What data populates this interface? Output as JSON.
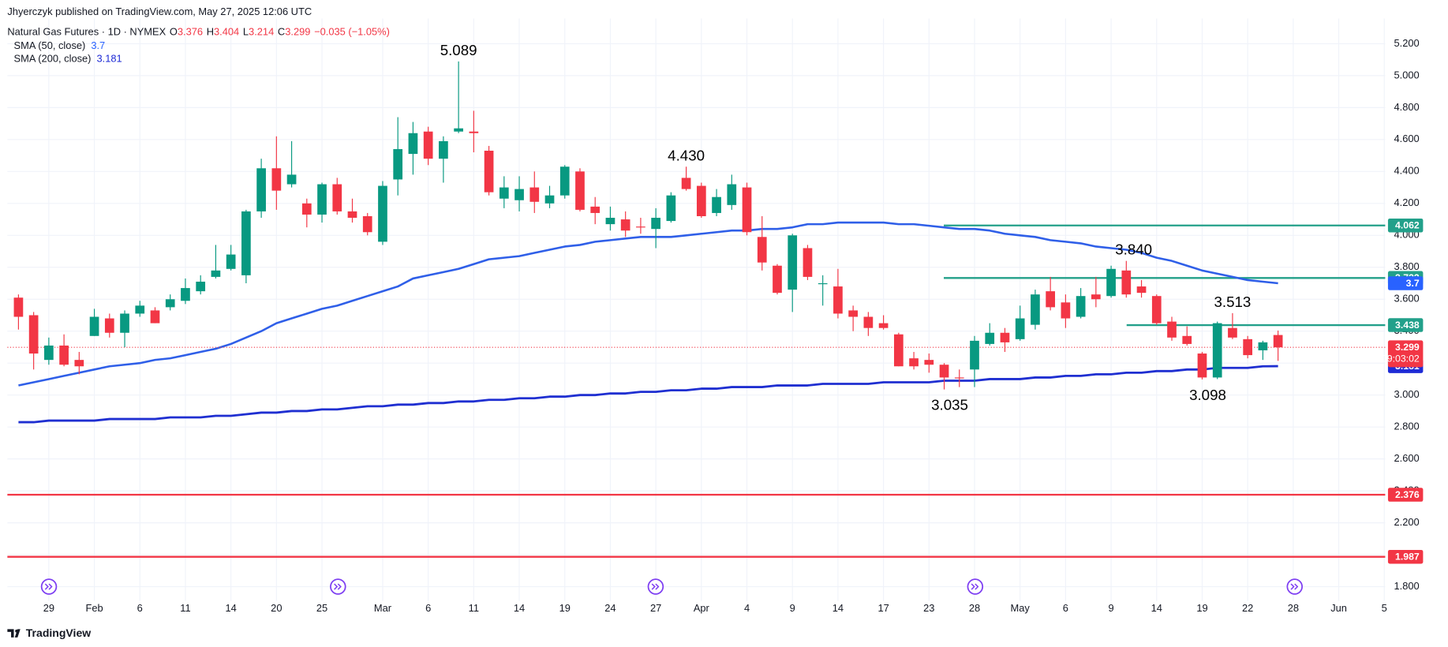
{
  "header": {
    "published": "Jhyerczyk published on TradingView.com, May 27, 2025 12:06 UTC",
    "symbol": "Natural Gas Futures · 1D · NYMEX",
    "ohlc_keys": [
      "O",
      "H",
      "L",
      "C"
    ],
    "change": "−0.035 (−1.05%)"
  },
  "footer": {
    "brand": "TradingView"
  },
  "chart_data": {
    "type": "candlestick",
    "categories": [
      null,
      null,
      "29",
      null,
      null,
      "Feb",
      null,
      null,
      "6",
      null,
      null,
      "11",
      null,
      null,
      "14",
      null,
      null,
      "20",
      null,
      null,
      "25",
      null,
      null,
      null,
      "Mar",
      null,
      null,
      "6",
      null,
      null,
      "11",
      null,
      null,
      "14",
      null,
      null,
      "19",
      null,
      null,
      "24",
      null,
      null,
      "27",
      null,
      null,
      "Apr",
      null,
      null,
      "4",
      null,
      null,
      "9",
      null,
      null,
      "14",
      null,
      null,
      "17",
      null,
      null,
      "23",
      null,
      null,
      "28",
      null,
      null,
      "May",
      null,
      null,
      "6",
      null,
      null,
      "9",
      null,
      null,
      "14",
      null,
      null,
      "19",
      null,
      null,
      "22",
      null,
      null,
      "28",
      null,
      null,
      "Jun",
      null,
      null,
      "5"
    ],
    "open": [
      3.61,
      3.5,
      3.22,
      3.31,
      3.22,
      3.37,
      3.48,
      3.39,
      3.51,
      3.53,
      3.55,
      3.59,
      3.65,
      3.74,
      3.79,
      3.75,
      4.15,
      4.42,
      4.32,
      4.2,
      4.13,
      4.32,
      4.15,
      4.12,
      3.96,
      4.35,
      4.51,
      4.65,
      4.48,
      4.65,
      4.65,
      4.53,
      4.23,
      4.22,
      4.3,
      4.2,
      4.25,
      4.4,
      4.18,
      4.07,
      4.1,
      4.055,
      4.04,
      4.09,
      4.36,
      4.31,
      4.14,
      4.19,
      4.3,
      3.99,
      3.81,
      3.66,
      3.92,
      3.7,
      3.68,
      3.53,
      3.49,
      3.45,
      3.38,
      3.23,
      3.22,
      3.19,
      3.11,
      3.16,
      3.32,
      3.39,
      3.35,
      3.44,
      3.65,
      3.58,
      3.49,
      3.63,
      3.62,
      3.78,
      3.68,
      3.62,
      3.46,
      3.37,
      3.26,
      3.11,
      3.42,
      3.35,
      3.28,
      3.376,
      null,
      null,
      null,
      null,
      null,
      null,
      null
    ],
    "high": [
      3.63,
      3.52,
      3.36,
      3.38,
      3.27,
      3.54,
      3.51,
      3.53,
      3.59,
      3.55,
      3.63,
      3.73,
      3.75,
      3.94,
      3.94,
      4.16,
      4.48,
      4.62,
      4.59,
      4.23,
      4.33,
      4.36,
      4.23,
      4.14,
      4.34,
      4.74,
      4.71,
      4.68,
      4.62,
      5.089,
      4.78,
      4.56,
      4.37,
      4.37,
      4.4,
      4.31,
      4.44,
      4.42,
      4.24,
      4.18,
      4.15,
      4.11,
      4.17,
      4.27,
      4.43,
      4.33,
      4.29,
      4.38,
      4.33,
      4.12,
      3.82,
      4.01,
      3.94,
      3.75,
      3.79,
      3.56,
      3.52,
      3.5,
      3.39,
      3.27,
      3.26,
      3.2,
      3.16,
      3.37,
      3.45,
      3.42,
      3.56,
      3.66,
      3.74,
      3.63,
      3.67,
      3.74,
      3.81,
      3.84,
      3.72,
      3.63,
      3.49,
      3.43,
      3.27,
      3.46,
      3.513,
      3.37,
      3.34,
      3.404,
      null,
      null,
      null,
      null,
      null,
      null,
      null
    ],
    "low": [
      3.41,
      3.16,
      3.19,
      3.18,
      3.13,
      3.37,
      3.36,
      3.3,
      3.49,
      3.45,
      3.53,
      3.57,
      3.63,
      3.73,
      3.78,
      3.7,
      4.11,
      4.16,
      4.3,
      4.05,
      4.08,
      4.13,
      4.08,
      4.0,
      3.94,
      4.25,
      4.38,
      4.44,
      4.33,
      4.64,
      4.52,
      4.25,
      4.17,
      4.15,
      4.14,
      4.17,
      4.23,
      4.15,
      4.07,
      4.03,
      3.99,
      4.01,
      3.92,
      4.08,
      4.28,
      4.11,
      4.12,
      4.16,
      4.0,
      3.78,
      3.63,
      3.52,
      3.72,
      3.56,
      3.48,
      3.4,
      3.37,
      3.41,
      3.18,
      3.16,
      3.14,
      3.035,
      3.05,
      3.05,
      3.31,
      3.27,
      3.34,
      3.41,
      3.53,
      3.42,
      3.48,
      3.55,
      3.61,
      3.61,
      3.61,
      3.44,
      3.34,
      3.31,
      3.098,
      3.1,
      3.35,
      3.23,
      3.22,
      3.214,
      null,
      null,
      null,
      null,
      null,
      null,
      null
    ],
    "close": [
      3.49,
      3.26,
      3.31,
      3.19,
      3.18,
      3.49,
      3.39,
      3.51,
      3.56,
      3.45,
      3.6,
      3.67,
      3.71,
      3.78,
      3.88,
      4.15,
      4.42,
      4.28,
      4.38,
      4.13,
      4.32,
      4.15,
      4.11,
      4.02,
      4.31,
      4.54,
      4.64,
      4.48,
      4.59,
      4.67,
      4.64,
      4.27,
      4.3,
      4.29,
      4.21,
      4.25,
      4.43,
      4.16,
      4.14,
      4.11,
      4.03,
      4.05,
      4.11,
      4.25,
      4.29,
      4.12,
      4.24,
      4.32,
      4.02,
      3.83,
      3.64,
      4.0,
      3.74,
      3.7,
      3.51,
      3.49,
      3.42,
      3.42,
      3.18,
      3.18,
      3.19,
      3.11,
      3.105,
      3.34,
      3.39,
      3.33,
      3.48,
      3.63,
      3.55,
      3.48,
      3.62,
      3.6,
      3.79,
      3.63,
      3.64,
      3.45,
      3.36,
      3.32,
      3.11,
      3.45,
      3.36,
      3.25,
      3.33,
      3.299,
      null,
      null,
      null,
      null,
      null,
      null,
      null
    ],
    "high_labels": [
      null,
      null,
      null,
      null,
      null,
      null,
      null,
      null,
      null,
      null,
      null,
      null,
      null,
      null,
      null,
      null,
      null,
      null,
      null,
      null,
      null,
      null,
      null,
      null,
      null,
      null,
      null,
      null,
      null,
      "5.089",
      null,
      null,
      null,
      null,
      null,
      null,
      null,
      null,
      null,
      null,
      null,
      null,
      null,
      null,
      "4.430",
      null,
      null,
      null,
      null,
      null,
      null,
      null,
      null,
      null,
      null,
      null,
      null,
      null,
      null,
      null,
      null,
      null,
      null,
      null,
      null,
      null,
      null,
      null,
      null,
      null,
      null,
      null,
      null,
      "3.840",
      null,
      null,
      null,
      null,
      null,
      null,
      "3.513",
      null,
      null,
      null,
      null,
      null,
      null,
      null,
      null,
      null,
      null
    ],
    "low_labels": [
      null,
      null,
      null,
      null,
      null,
      null,
      null,
      null,
      null,
      null,
      null,
      null,
      null,
      null,
      null,
      null,
      null,
      null,
      null,
      null,
      null,
      null,
      null,
      null,
      null,
      null,
      null,
      null,
      null,
      null,
      null,
      null,
      null,
      null,
      null,
      null,
      null,
      null,
      null,
      null,
      null,
      null,
      null,
      null,
      null,
      null,
      null,
      null,
      null,
      null,
      null,
      null,
      null,
      null,
      null,
      null,
      null,
      null,
      null,
      null,
      null,
      "3.035",
      null,
      null,
      null,
      null,
      null,
      null,
      null,
      null,
      null,
      null,
      null,
      null,
      null,
      null,
      null,
      null,
      "3.098",
      null,
      null,
      null,
      null,
      null,
      null,
      null,
      null,
      null,
      null,
      null,
      null
    ],
    "up_color": "#089981",
    "down_color": "#f23645",
    "sma": [
      {
        "name": "SMA (50, close)",
        "color": "#2f5fe8",
        "box_color": "#2962ff",
        "values": [
          3.06,
          3.08,
          3.1,
          3.12,
          3.14,
          3.16,
          3.18,
          3.19,
          3.2,
          3.22,
          3.23,
          3.25,
          3.27,
          3.29,
          3.32,
          3.36,
          3.4,
          3.45,
          3.48,
          3.51,
          3.54,
          3.56,
          3.59,
          3.62,
          3.65,
          3.68,
          3.73,
          3.75,
          3.77,
          3.79,
          3.82,
          3.85,
          3.86,
          3.87,
          3.89,
          3.91,
          3.93,
          3.94,
          3.96,
          3.97,
          3.98,
          3.99,
          3.99,
          3.99,
          4.0,
          4.01,
          4.02,
          4.03,
          4.03,
          4.04,
          4.04,
          4.05,
          4.07,
          4.07,
          4.08,
          4.08,
          4.08,
          4.08,
          4.07,
          4.07,
          4.06,
          4.05,
          4.04,
          4.04,
          4.03,
          4.01,
          4.0,
          3.99,
          3.97,
          3.96,
          3.95,
          3.93,
          3.92,
          3.91,
          3.89,
          3.86,
          3.84,
          3.81,
          3.78,
          3.76,
          3.74,
          3.72,
          3.71,
          3.7,
          null,
          null,
          null,
          null,
          null,
          null,
          null
        ]
      },
      {
        "name": "SMA (200, close)",
        "color": "#1f2fd1",
        "box_color": "#1e2bd6",
        "values": [
          2.83,
          2.83,
          2.84,
          2.84,
          2.84,
          2.84,
          2.85,
          2.85,
          2.85,
          2.85,
          2.86,
          2.86,
          2.86,
          2.87,
          2.87,
          2.88,
          2.89,
          2.89,
          2.9,
          2.9,
          2.91,
          2.91,
          2.92,
          2.93,
          2.93,
          2.94,
          2.94,
          2.95,
          2.95,
          2.96,
          2.96,
          2.97,
          2.97,
          2.98,
          2.98,
          2.99,
          2.99,
          3.0,
          3.0,
          3.01,
          3.01,
          3.02,
          3.02,
          3.03,
          3.03,
          3.04,
          3.04,
          3.05,
          3.05,
          3.05,
          3.06,
          3.06,
          3.06,
          3.07,
          3.07,
          3.07,
          3.07,
          3.08,
          3.08,
          3.08,
          3.08,
          3.09,
          3.09,
          3.09,
          3.1,
          3.1,
          3.1,
          3.11,
          3.11,
          3.12,
          3.12,
          3.13,
          3.13,
          3.14,
          3.14,
          3.15,
          3.15,
          3.16,
          3.16,
          3.17,
          3.17,
          3.17,
          3.18,
          3.181,
          null,
          null,
          null,
          null,
          null,
          null,
          null
        ]
      }
    ],
    "levels": [
      {
        "value": 4.062,
        "color": "#22a08a"
      },
      {
        "value": 3.733,
        "color": "#22a08a"
      },
      {
        "value": 3.438,
        "color": "#22a08a"
      },
      {
        "value": 2.376,
        "color": "#f23645"
      },
      {
        "value": 1.987,
        "color": "#f23645"
      }
    ],
    "countdown": "09:03:02",
    "ylim": [
      1.71,
      5.3
    ],
    "yticks": [
      {
        "value": 1.8,
        "label": "1.800"
      },
      {
        "value": 2.0,
        "label": "2.000"
      },
      {
        "value": 2.2,
        "label": "2.200"
      },
      {
        "value": 2.4,
        "label": "2.400"
      },
      {
        "value": 2.6,
        "label": "2.600"
      },
      {
        "value": 2.8,
        "label": "2.800"
      },
      {
        "value": 3.0,
        "label": "3.000"
      },
      {
        "value": 3.2,
        "label": "3.200"
      },
      {
        "value": 3.4,
        "label": "3.400"
      },
      {
        "value": 3.6,
        "label": "3.600"
      },
      {
        "value": 3.8,
        "label": "3.800"
      },
      {
        "value": 4.0,
        "label": "4.000"
      },
      {
        "value": 4.2,
        "label": "4.200"
      },
      {
        "value": 4.4,
        "label": "4.400"
      },
      {
        "value": 4.6,
        "label": "4.600"
      },
      {
        "value": 4.8,
        "label": "4.800"
      },
      {
        "value": 5.0,
        "label": "5.000"
      },
      {
        "value": 5.2,
        "label": "5.200"
      }
    ],
    "grid": true
  }
}
